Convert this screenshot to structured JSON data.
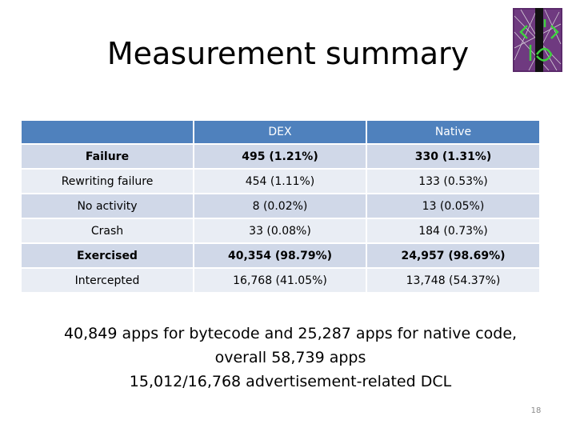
{
  "slide": {
    "title": "Measurement summary",
    "page_number": "18"
  },
  "table": {
    "headers": [
      "",
      "DEX",
      "Native"
    ],
    "rows": [
      {
        "label": "Failure",
        "dex": "495 (1.21%)",
        "native": "330 (1.31%)"
      },
      {
        "label": "Rewriting failure",
        "dex": "454 (1.11%)",
        "native": "133 (0.53%)"
      },
      {
        "label": "No activity",
        "dex": "8 (0.02%)",
        "native": "13 (0.05%)"
      },
      {
        "label": "Crash",
        "dex": "33 (0.08%)",
        "native": "184 (0.73%)"
      },
      {
        "label": "Exercised",
        "dex": "40,354 (98.79%)",
        "native": "24,957 (98.69%)"
      },
      {
        "label": "Intercepted",
        "dex": "16,768 (41.05%)",
        "native": "13,748 (54.37%)"
      }
    ]
  },
  "notes": [
    "40,849 apps for bytecode and 25,287 apps for native code,",
    "overall 58,739 apps",
    "15,012/16,768 advertisement-related DCL"
  ],
  "colors": {
    "header": "#4f81bd",
    "row_dark": "#d0d8e8",
    "row_light": "#e9edf4"
  },
  "logo": {
    "icon": "institution-logo-icon"
  }
}
